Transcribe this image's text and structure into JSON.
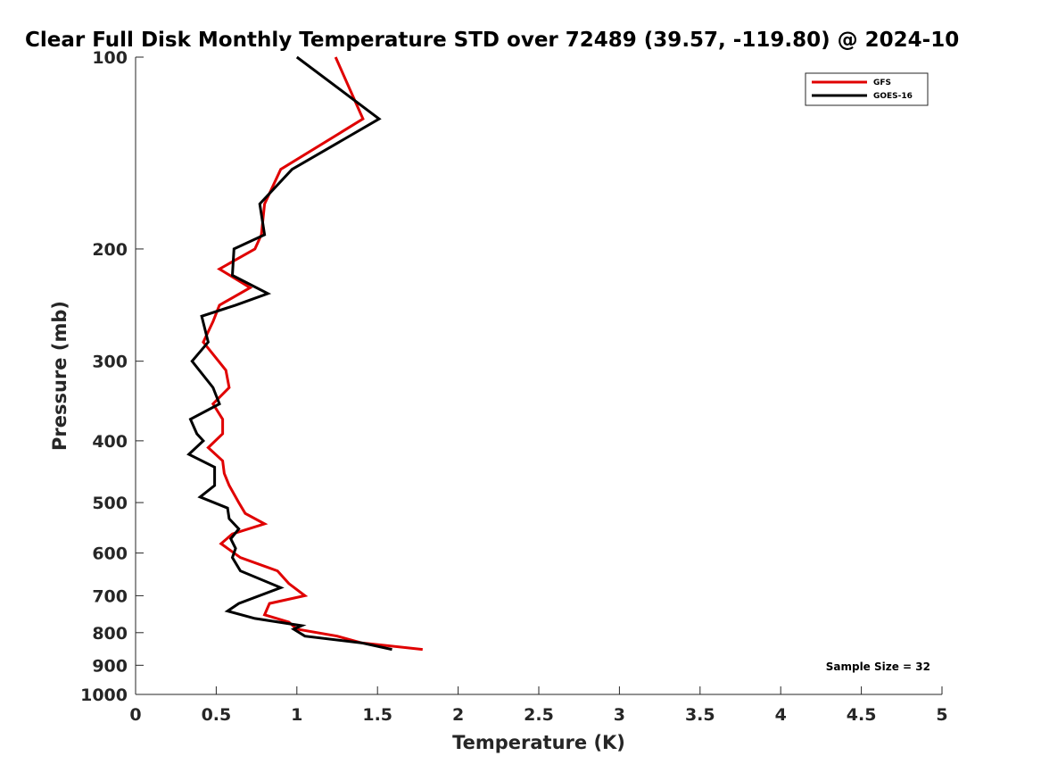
{
  "chart_data": {
    "type": "line",
    "title": "Clear Full Disk Monthly Temperature STD over 72489 (39.57, -119.80) @ 2024-10",
    "xlabel": "Temperature (K)",
    "ylabel": "Pressure (mb)",
    "xlim": [
      0,
      5
    ],
    "ylim": [
      100,
      1000
    ],
    "yscale": "log",
    "yreversed": true,
    "x_ticks": [
      "0",
      "0.5",
      "1",
      "1.5",
      "2",
      "2.5",
      "3",
      "3.5",
      "4",
      "4.5",
      "5"
    ],
    "x_tick_values": [
      0,
      0.5,
      1,
      1.5,
      2,
      2.5,
      3,
      3.5,
      4,
      4.5,
      5
    ],
    "y_ticks": [
      "100",
      "200",
      "300",
      "400",
      "500",
      "600",
      "700",
      "800",
      "900",
      "1000"
    ],
    "y_tick_values": [
      100,
      200,
      300,
      400,
      500,
      600,
      700,
      800,
      900,
      1000
    ],
    "legend_position": "top-right",
    "annotation": "Sample Size = 32",
    "series": [
      {
        "name": "GFS",
        "color": "#e00000",
        "points": [
          [
            1.24,
            100
          ],
          [
            1.41,
            125
          ],
          [
            0.9,
            150
          ],
          [
            0.8,
            170
          ],
          [
            0.78,
            190
          ],
          [
            0.74,
            200
          ],
          [
            0.52,
            215
          ],
          [
            0.71,
            230
          ],
          [
            0.52,
            245
          ],
          [
            0.48,
            260
          ],
          [
            0.42,
            280
          ],
          [
            0.56,
            310
          ],
          [
            0.58,
            330
          ],
          [
            0.48,
            350
          ],
          [
            0.54,
            370
          ],
          [
            0.54,
            390
          ],
          [
            0.45,
            410
          ],
          [
            0.54,
            430
          ],
          [
            0.55,
            450
          ],
          [
            0.58,
            470
          ],
          [
            0.64,
            500
          ],
          [
            0.68,
            520
          ],
          [
            0.8,
            540
          ],
          [
            0.6,
            560
          ],
          [
            0.53,
            580
          ],
          [
            0.65,
            610
          ],
          [
            0.88,
            640
          ],
          [
            0.95,
            670
          ],
          [
            1.05,
            700
          ],
          [
            0.83,
            720
          ],
          [
            0.8,
            750
          ],
          [
            0.95,
            770
          ],
          [
            1.0,
            790
          ],
          [
            1.25,
            810
          ],
          [
            1.4,
            830
          ],
          [
            1.78,
            850
          ]
        ]
      },
      {
        "name": "GOES-16",
        "color": "#000000",
        "points": [
          [
            1.0,
            100
          ],
          [
            1.51,
            125
          ],
          [
            0.97,
            150
          ],
          [
            0.77,
            170
          ],
          [
            0.8,
            190
          ],
          [
            0.61,
            200
          ],
          [
            0.6,
            220
          ],
          [
            0.82,
            235
          ],
          [
            0.62,
            245
          ],
          [
            0.41,
            255
          ],
          [
            0.45,
            280
          ],
          [
            0.35,
            300
          ],
          [
            0.48,
            330
          ],
          [
            0.52,
            350
          ],
          [
            0.34,
            370
          ],
          [
            0.38,
            390
          ],
          [
            0.42,
            400
          ],
          [
            0.33,
            420
          ],
          [
            0.49,
            440
          ],
          [
            0.49,
            470
          ],
          [
            0.4,
            490
          ],
          [
            0.57,
            510
          ],
          [
            0.58,
            530
          ],
          [
            0.64,
            550
          ],
          [
            0.59,
            570
          ],
          [
            0.62,
            590
          ],
          [
            0.6,
            610
          ],
          [
            0.65,
            640
          ],
          [
            0.9,
            680
          ],
          [
            0.64,
            720
          ],
          [
            0.57,
            740
          ],
          [
            0.74,
            760
          ],
          [
            1.03,
            780
          ],
          [
            0.98,
            790
          ],
          [
            1.05,
            810
          ],
          [
            1.4,
            830
          ],
          [
            1.59,
            850
          ]
        ]
      }
    ]
  }
}
